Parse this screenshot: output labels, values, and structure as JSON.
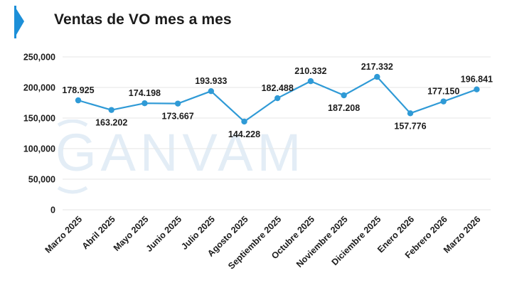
{
  "header": {
    "title": "Ventas de VO mes a mes",
    "accent_color": "#1c8fd8"
  },
  "watermark": {
    "text": "GANVAM"
  },
  "chart_data": {
    "type": "line",
    "title": "Ventas de VO mes a mes",
    "xlabel": "",
    "ylabel": "",
    "categories": [
      "Marzo 2025",
      "Abril 2025",
      "Mayo 2025",
      "Junio 2025",
      "Julio 2025",
      "Agosto 2025",
      "Septiembre 2025",
      "Octubre 2025",
      "Noviembre 2025",
      "Diciembre 2025",
      "Enero 2026",
      "Febrero 2026",
      "Marzo 2026"
    ],
    "series": [
      {
        "values": [
          178925,
          163202,
          174198,
          173667,
          193933,
          144228,
          182488,
          210332,
          187208,
          217332,
          157776,
          177150,
          196841
        ],
        "labels": [
          "178.925",
          "163.202",
          "174.198",
          "173.667",
          "193.933",
          "144.228",
          "182.488",
          "210.332",
          "187.208",
          "217.332",
          "157.776",
          "177.150",
          "196.841"
        ],
        "label_position": [
          "above",
          "below",
          "above",
          "below",
          "above",
          "below",
          "above",
          "above",
          "below",
          "above",
          "below",
          "above",
          "above"
        ],
        "color": "#2f9ad6"
      }
    ],
    "ylim": [
      0,
      250000
    ],
    "yticks": [
      0,
      50000,
      100000,
      150000,
      200000,
      250000
    ],
    "ytick_labels": [
      "0",
      "50,000",
      "100,000",
      "150,000",
      "200,000",
      "250,000"
    ],
    "grid": true,
    "legend": "none"
  }
}
